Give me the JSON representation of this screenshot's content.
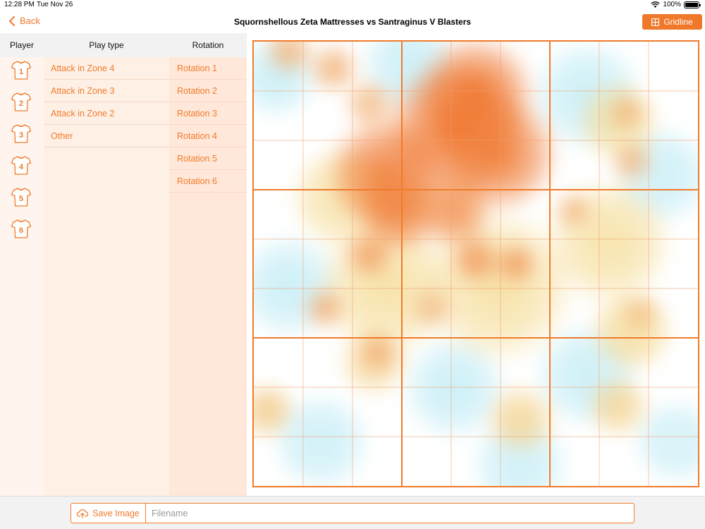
{
  "status_bar": {
    "time": "12:28 PM",
    "date": "Tue Nov 26",
    "battery": "100%"
  },
  "nav": {
    "back_label": "Back",
    "title": "Squornshellous Zeta Mattresses vs Santraginus V Blasters",
    "gridline_label": "Gridline"
  },
  "columns": {
    "player": "Player",
    "play_type": "Play type",
    "rotation": "Rotation"
  },
  "players": [
    "1",
    "2",
    "3",
    "4",
    "5",
    "6"
  ],
  "play_types": [
    "Attack in Zone 4",
    "Attack in Zone 3",
    "Attack in Zone 2",
    "Other"
  ],
  "rotations": [
    "Rotation 1",
    "Rotation 2",
    "Rotation 3",
    "Rotation 4",
    "Rotation 5",
    "Rotation 6"
  ],
  "bottom": {
    "save_label": "Save Image",
    "filename_placeholder": "Filename",
    "filename_value": ""
  },
  "colors": {
    "accent": "#f07b2a",
    "heat_hot": "#f0782a",
    "heat_warm": "#f5c98a",
    "heat_cool": "#cfeef5"
  },
  "court": {
    "columns": 9,
    "rows": 9
  }
}
